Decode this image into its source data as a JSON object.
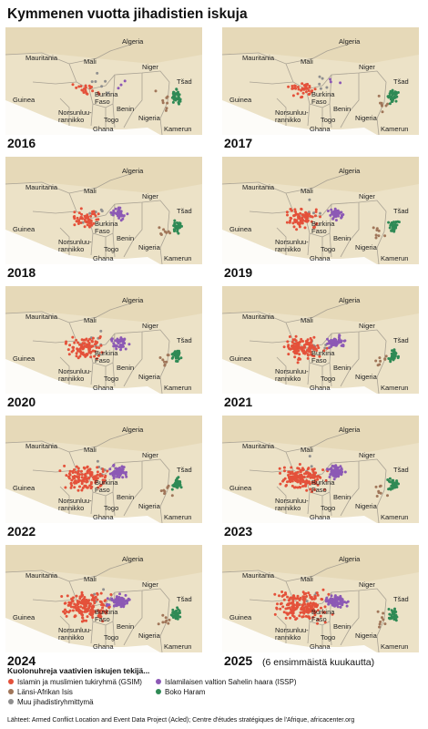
{
  "title": "Kymmenen vuotta jihadistien iskuja",
  "panels": [
    {
      "year": "2016"
    },
    {
      "year": "2017"
    },
    {
      "year": "2018"
    },
    {
      "year": "2019"
    },
    {
      "year": "2020"
    },
    {
      "year": "2021"
    },
    {
      "year": "2022"
    },
    {
      "year": "2023"
    },
    {
      "year": "2024"
    },
    {
      "year": "2025",
      "note": "(6 ensimmäistä kuukautta)"
    }
  ],
  "countries": {
    "algeria": [
      "Algeria"
    ],
    "mauritania": [
      "Mauritania"
    ],
    "mali": [
      "Mali"
    ],
    "niger": [
      "Niger"
    ],
    "tsad": [
      "Tšad"
    ],
    "guinea": [
      "Guinea"
    ],
    "burkina": [
      "Burkina",
      "Faso"
    ],
    "benin": [
      "Benin"
    ],
    "nigeria": [
      "Nigeria"
    ],
    "norsunluurannikko": [
      "Norsunluu-",
      "rannikko"
    ],
    "togo": [
      "Togo"
    ],
    "ghana": [
      "Ghana"
    ],
    "kamerun": [
      "Kamerun"
    ]
  },
  "legend": {
    "title": "Kuolonuhreja vaativien iskujen tekijä...",
    "items": [
      {
        "label": "Islamin ja muslimien tukiryhmä (GSIM)",
        "color": "#e4513a"
      },
      {
        "label": "Islamilaisen valtion Sahelin haara (ISSP)",
        "color": "#8c59b5"
      },
      {
        "label": "Länsi-Afrikan Isis",
        "color": "#a0765a"
      },
      {
        "label": "Boko Haram",
        "color": "#2f8a55"
      },
      {
        "label": "Muu jihadistiryhmittymä",
        "color": "#8f8f8f"
      }
    ]
  },
  "source": "Lähteet: Armed Conflict Location and Event Data Project (Acled);  Centre d'études stratégiques de l'Afrique, africacenter.org"
}
